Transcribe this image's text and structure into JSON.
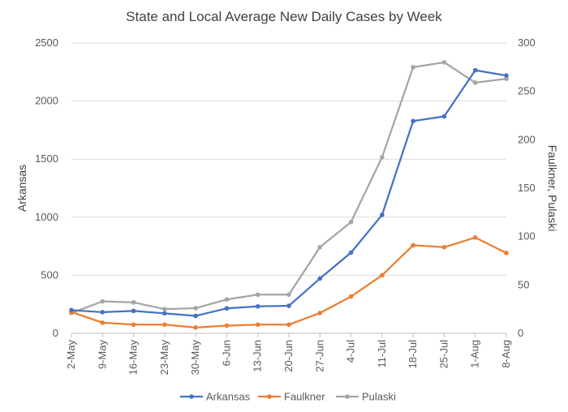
{
  "chart_data": {
    "type": "line",
    "title": "State and Local Average New Daily Cases by Week",
    "categories": [
      "2-May",
      "9-May",
      "16-May",
      "23-May",
      "30-May",
      "6-Jun",
      "13-Jun",
      "20-Jun",
      "27-Jun",
      "4-Jul",
      "11-Jul",
      "18-Jul",
      "25-Jul",
      "1-Aug",
      "8-Aug"
    ],
    "ylabel": "Arkansas",
    "y2label": "Faulkner, Pulaski",
    "ylim": [
      0,
      2500
    ],
    "y2lim": [
      0,
      300
    ],
    "yticks": [
      0,
      500,
      1000,
      1500,
      2000,
      2500
    ],
    "y2ticks": [
      0,
      50,
      100,
      150,
      200,
      250,
      300
    ],
    "grid": true,
    "legend": "bottom",
    "series": [
      {
        "name": "Arkansas",
        "axis": "left",
        "color": "#4472C4",
        "values": [
          200,
          182,
          193,
          172,
          150,
          215,
          232,
          237,
          472,
          695,
          1020,
          1828,
          1868,
          2265,
          2220
        ]
      },
      {
        "name": "Faulkner",
        "axis": "right",
        "color": "#ED7D31",
        "values": [
          22,
          11,
          9,
          9,
          6,
          8,
          9,
          9,
          21,
          38,
          60,
          91,
          89,
          99,
          83
        ]
      },
      {
        "name": "Pulaski",
        "axis": "right",
        "color": "#A5A5A5",
        "values": [
          21,
          33,
          32,
          25,
          26,
          35,
          40,
          40,
          89,
          115,
          182,
          275,
          280,
          259,
          263
        ]
      }
    ]
  }
}
